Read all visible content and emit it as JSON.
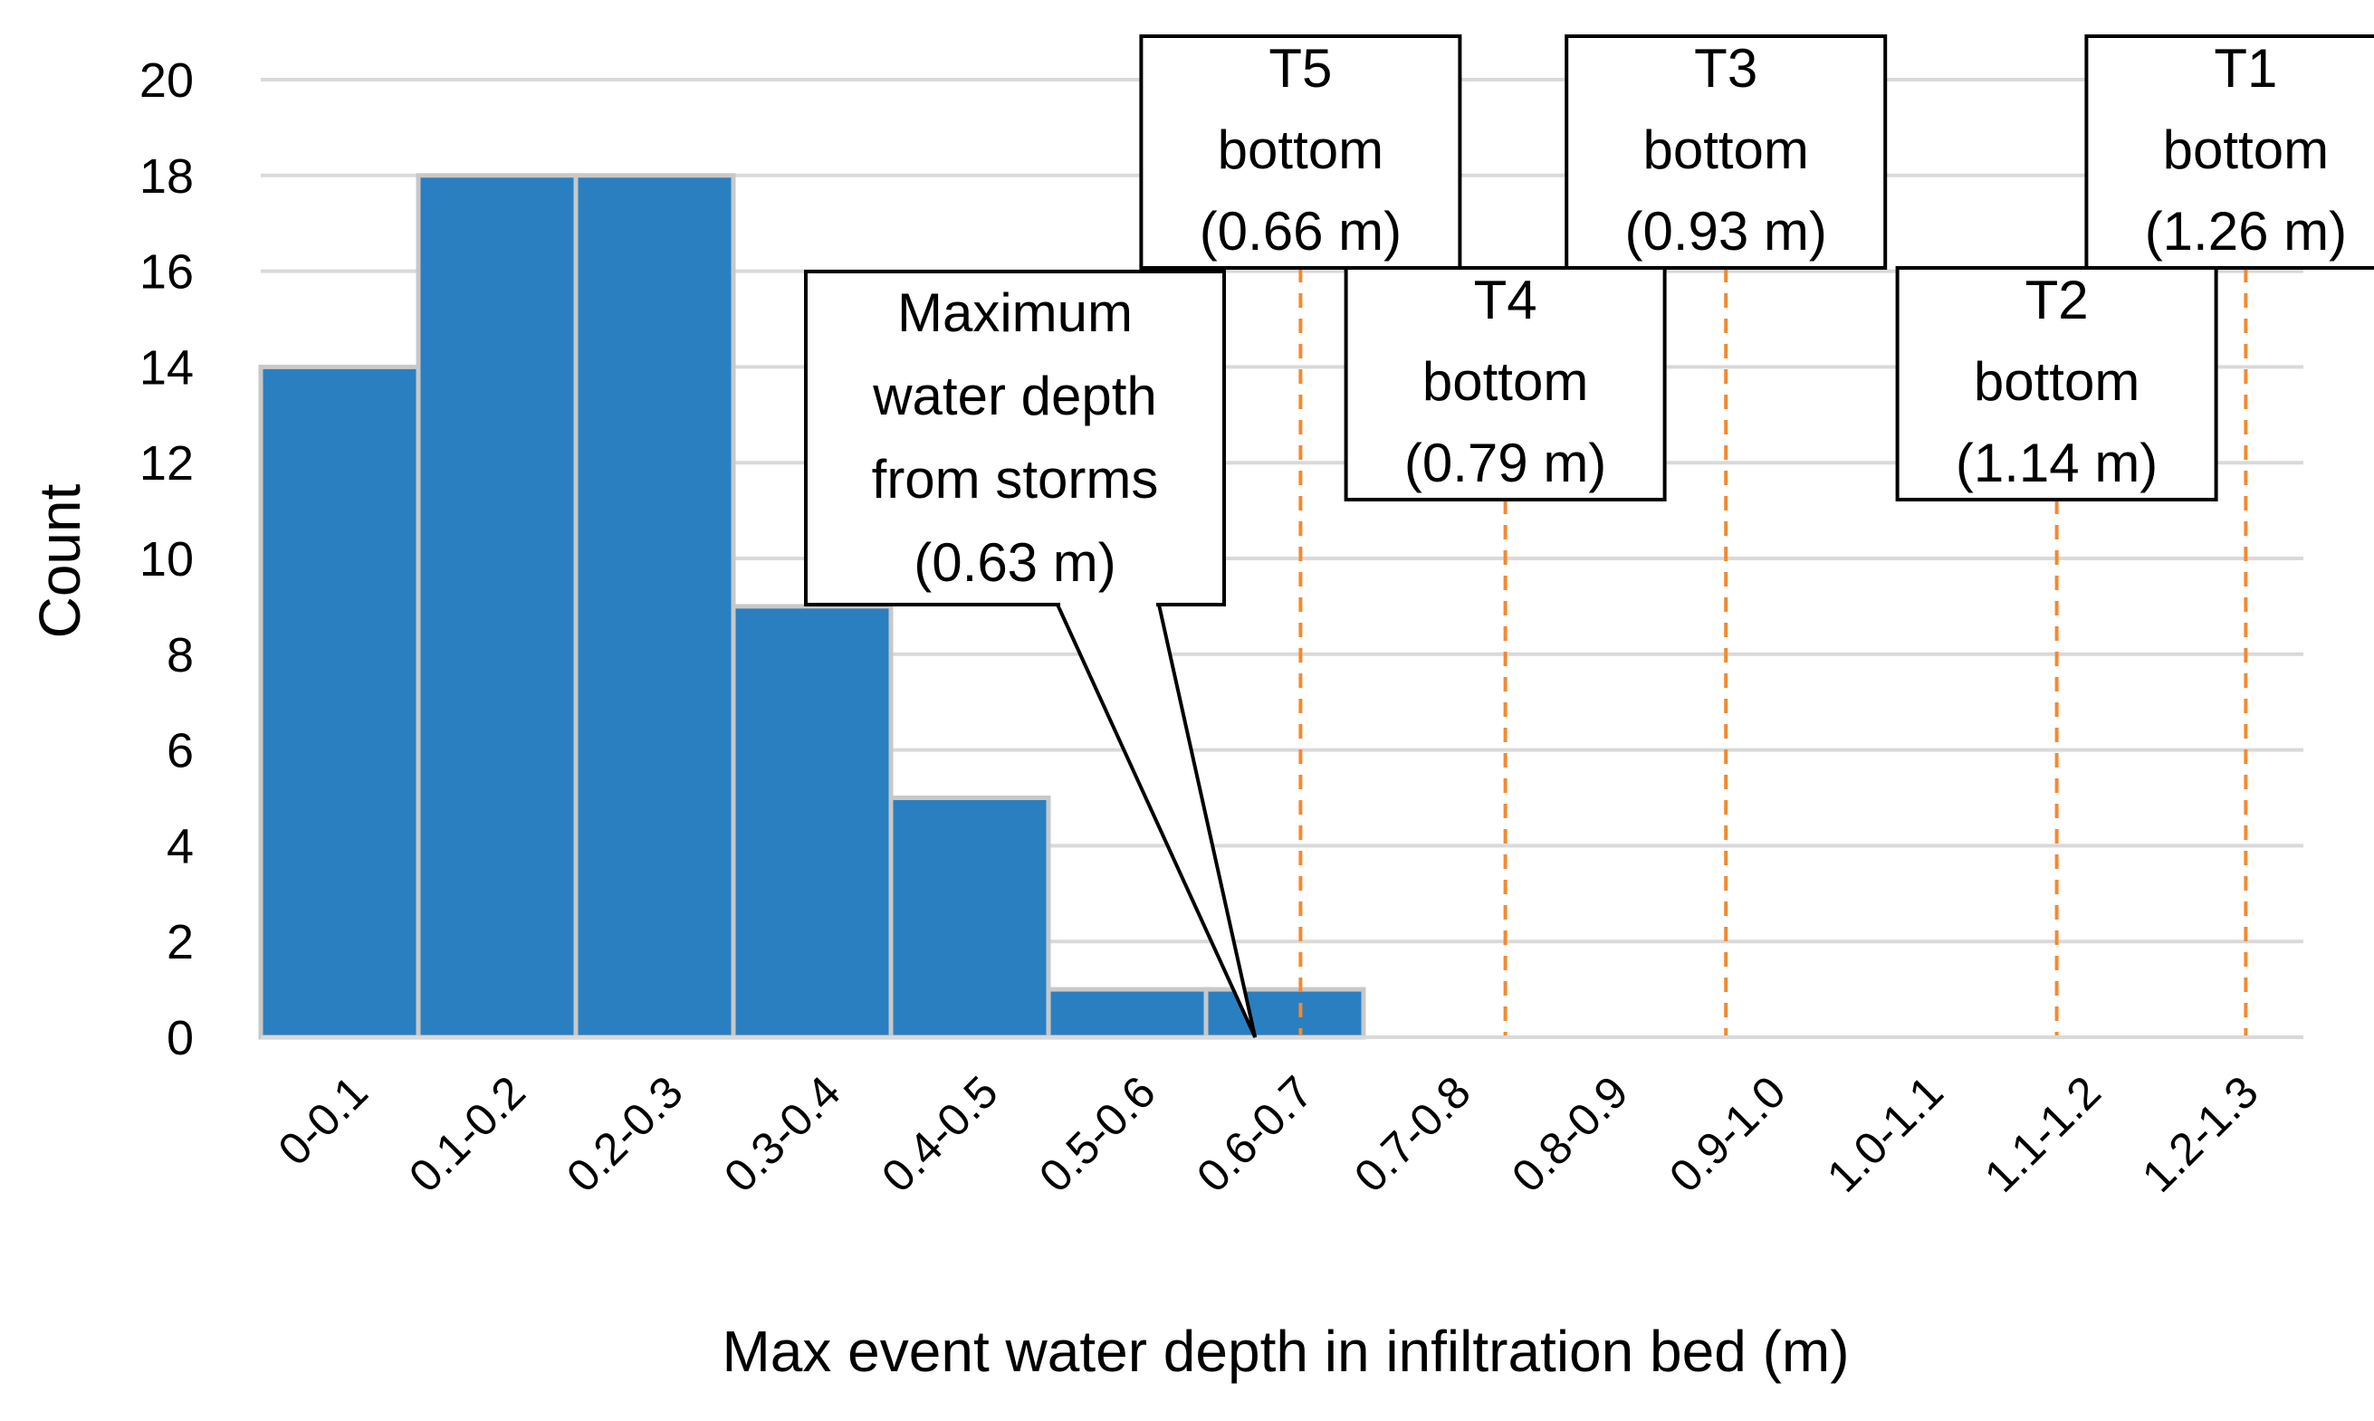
{
  "chart_data": {
    "type": "bar",
    "title": "",
    "xlabel": "Max event water depth in infiltration bed (m)",
    "ylabel": "Count",
    "ylim": [
      0,
      20
    ],
    "yticks": [
      0,
      2,
      4,
      6,
      8,
      10,
      12,
      14,
      16,
      18,
      20
    ],
    "grid": true,
    "categories": [
      "0-0.1",
      "0.1-0.2",
      "0.2-0.3",
      "0.3-0.4",
      "0.4-0.5",
      "0.5-0.6",
      "0.6-0.7",
      "0.7-0.8",
      "0.8-0.9",
      "0.9-1.0",
      "1.0-1.1",
      "1.1-1.2",
      "1.2-1.3"
    ],
    "values": [
      14,
      18,
      18,
      9,
      5,
      1,
      1,
      0,
      0,
      0,
      0,
      0,
      0
    ],
    "bar_color": "#2a7fc1",
    "bar_edge_color": "#c8c8c8",
    "grid_color": "#d9d9d9",
    "reference_line_color": "#f28a30",
    "reference_lines": [
      {
        "id": "t5",
        "label_lines": [
          "T5",
          "bottom",
          "(0.66 m)"
        ],
        "depth_m": 0.66
      },
      {
        "id": "t4",
        "label_lines": [
          "T4",
          "bottom",
          "(0.79 m)"
        ],
        "depth_m": 0.79
      },
      {
        "id": "t3",
        "label_lines": [
          "T3",
          "bottom",
          "(0.93 m)"
        ],
        "depth_m": 0.93
      },
      {
        "id": "t2",
        "label_lines": [
          "T2",
          "bottom",
          "(1.14 m)"
        ],
        "depth_m": 1.14
      },
      {
        "id": "t1",
        "label_lines": [
          "T1",
          "bottom",
          "(1.26 m)"
        ],
        "depth_m": 1.26
      }
    ],
    "callout": {
      "label_lines": [
        "Maximum",
        "water depth",
        "from storms",
        "(0.63 m)"
      ],
      "depth_m": 0.63
    }
  }
}
